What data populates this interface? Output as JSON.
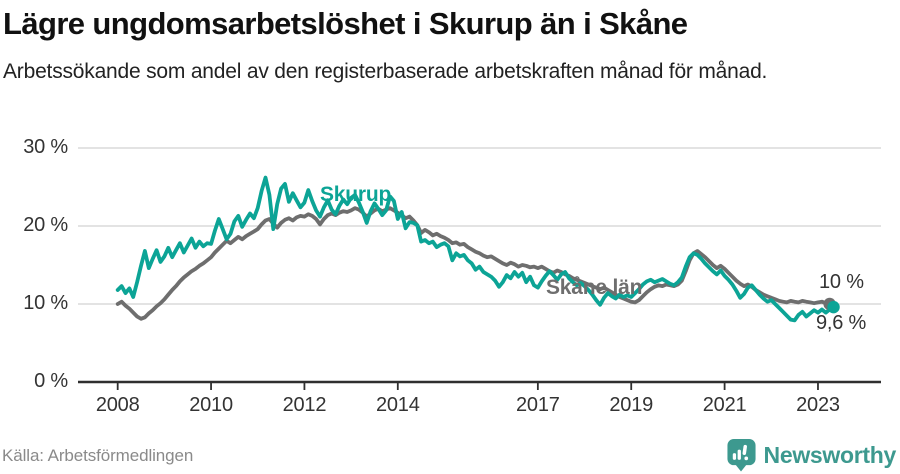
{
  "header": {
    "title": "Lägre ungdomsarbetslöshet i Skurup än i Skåne",
    "subtitle": "Arbetssökande som andel av den registerbaserade arbetskraften månad för månad."
  },
  "footer": {
    "source": "Källa: Arbetsförmedlingen",
    "brand": "Newsworthy"
  },
  "colors": {
    "skurup_teal": "#0ca496",
    "skane_gray": "#6e6e6e",
    "gridline": "#dadada",
    "axis": "#2f2f2f",
    "brand_teal": "#3d998f",
    "label_dark": "#333333"
  },
  "chart_data": {
    "type": "line",
    "title": "Lägre ungdomsarbetslöshet i Skurup än i Skåne",
    "xlabel": "",
    "ylabel": "Arbetssökande som andel av den registerbaserade arbetskraften",
    "x_start_year_month": "2008-01",
    "step_months": 1,
    "ylim": [
      0,
      30
    ],
    "xlim_years": [
      2007.15,
      2024.35
    ],
    "grid": "horizontal",
    "legend_position": "inline-labels",
    "y_ticks": [
      {
        "value": 0,
        "label": "0 %"
      },
      {
        "value": 10,
        "label": "10 %"
      },
      {
        "value": 20,
        "label": "20 %"
      },
      {
        "value": 30,
        "label": "30 %"
      }
    ],
    "x_ticks": [
      {
        "value": 2008,
        "label": "2008"
      },
      {
        "value": 2010,
        "label": "2010"
      },
      {
        "value": 2012,
        "label": "2012"
      },
      {
        "value": 2014,
        "label": "2014"
      },
      {
        "value": 2017,
        "label": "2017"
      },
      {
        "value": 2019,
        "label": "2019"
      },
      {
        "value": 2021,
        "label": "2021"
      },
      {
        "value": 2023,
        "label": "2023"
      }
    ],
    "series": [
      {
        "name": "Skåne län",
        "color": "#6e6e6e",
        "end_label": "10 %",
        "end_value": 10.0,
        "values": [
          10.0,
          10.3,
          9.8,
          9.4,
          8.9,
          8.4,
          8.1,
          8.3,
          8.8,
          9.2,
          9.7,
          10.1,
          10.6,
          11.2,
          11.8,
          12.3,
          12.9,
          13.4,
          13.8,
          14.2,
          14.5,
          14.9,
          15.2,
          15.6,
          16.0,
          16.6,
          17.1,
          17.6,
          18.1,
          17.8,
          18.2,
          18.6,
          18.3,
          18.7,
          19.0,
          19.3,
          19.6,
          20.2,
          20.7,
          20.9,
          20.3,
          19.8,
          20.4,
          20.8,
          21.0,
          20.7,
          21.1,
          21.3,
          21.2,
          21.5,
          21.3,
          20.9,
          20.2,
          20.9,
          21.4,
          21.6,
          21.4,
          21.7,
          21.9,
          21.8,
          22.0,
          22.3,
          22.1,
          21.7,
          21.2,
          21.6,
          22.0,
          22.2,
          21.9,
          22.1,
          22.3,
          22.0,
          21.7,
          21.4,
          21.0,
          21.2,
          20.7,
          20.1,
          19.1,
          19.5,
          19.2,
          18.8,
          19.0,
          18.7,
          18.5,
          18.2,
          17.8,
          17.9,
          17.6,
          17.7,
          17.3,
          17.0,
          16.7,
          16.5,
          16.2,
          16.0,
          16.1,
          15.8,
          15.5,
          15.2,
          15.0,
          15.3,
          15.1,
          14.8,
          15.0,
          14.9,
          14.7,
          14.8,
          14.6,
          14.8,
          14.5,
          14.2,
          14.0,
          14.3,
          14.1,
          13.8,
          13.6,
          13.3,
          13.1,
          12.9,
          12.7,
          12.5,
          12.3,
          12.1,
          11.9,
          12.1,
          11.8,
          11.5,
          11.2,
          10.9,
          10.7,
          10.5,
          10.3,
          10.2,
          10.5,
          11.0,
          11.5,
          11.9,
          12.2,
          12.4,
          12.3,
          12.5,
          12.4,
          12.3,
          12.5,
          13.0,
          14.2,
          15.6,
          16.5,
          16.8,
          16.4,
          16.0,
          15.5,
          15.0,
          14.6,
          14.9,
          14.5,
          14.0,
          13.5,
          13.0,
          12.6,
          12.3,
          12.5,
          12.2,
          11.8,
          11.5,
          11.2,
          11.0,
          10.8,
          10.6,
          10.4,
          10.3,
          10.2,
          10.4,
          10.3,
          10.2,
          10.4,
          10.3,
          10.2,
          10.1,
          10.2,
          10.3,
          10.1,
          10.0
        ]
      },
      {
        "name": "Skurup",
        "color": "#0ca496",
        "end_label": "9,6 %",
        "end_value": 9.6,
        "values": [
          11.8,
          12.3,
          11.4,
          12.0,
          10.9,
          12.8,
          14.9,
          16.8,
          14.6,
          15.8,
          16.9,
          15.4,
          16.1,
          17.2,
          16.0,
          16.9,
          17.8,
          16.6,
          17.5,
          18.4,
          17.2,
          18.0,
          17.4,
          17.8,
          17.7,
          19.4,
          20.9,
          19.6,
          18.3,
          19.0,
          20.6,
          21.3,
          19.9,
          20.8,
          21.6,
          21.0,
          22.3,
          24.5,
          26.2,
          24.0,
          19.6,
          22.8,
          24.8,
          25.4,
          23.1,
          24.2,
          23.3,
          22.4,
          23.0,
          24.6,
          23.2,
          22.0,
          21.2,
          22.4,
          23.3,
          22.1,
          21.5,
          22.6,
          23.4,
          22.8,
          23.6,
          24.0,
          23.0,
          21.8,
          20.4,
          21.9,
          22.9,
          22.2,
          21.4,
          22.0,
          23.8,
          23.2,
          20.9,
          21.8,
          19.7,
          20.5,
          20.4,
          20.1,
          18.0,
          18.2,
          17.8,
          18.0,
          17.3,
          17.6,
          17.8,
          17.4,
          15.6,
          16.5,
          16.1,
          16.3,
          15.6,
          15.2,
          14.4,
          14.8,
          14.1,
          13.8,
          13.5,
          13.0,
          12.2,
          12.8,
          13.7,
          13.3,
          14.1,
          13.5,
          14.0,
          12.8,
          13.5,
          12.4,
          12.1,
          12.9,
          13.6,
          14.2,
          13.7,
          13.1,
          13.8,
          14.1,
          13.3,
          12.8,
          12.4,
          12.7,
          12.3,
          11.8,
          11.2,
          10.5,
          9.9,
          10.8,
          11.4,
          11.0,
          10.7,
          11.2,
          10.9,
          11.1,
          10.9,
          11.4,
          11.9,
          12.5,
          12.9,
          13.1,
          12.8,
          13.0,
          13.2,
          12.9,
          12.6,
          12.4,
          12.8,
          13.4,
          14.8,
          16.0,
          16.5,
          16.3,
          15.8,
          15.2,
          14.7,
          14.2,
          13.8,
          14.3,
          13.6,
          13.1,
          12.5,
          11.7,
          10.8,
          11.3,
          12.1,
          12.4,
          11.8,
          11.2,
          10.7,
          10.3,
          10.5,
          10.0,
          9.5,
          9.0,
          8.5,
          8.0,
          7.9,
          8.6,
          9.0,
          8.4,
          8.8,
          9.2,
          8.9,
          9.3,
          8.9,
          9.3,
          9.6
        ]
      }
    ]
  }
}
